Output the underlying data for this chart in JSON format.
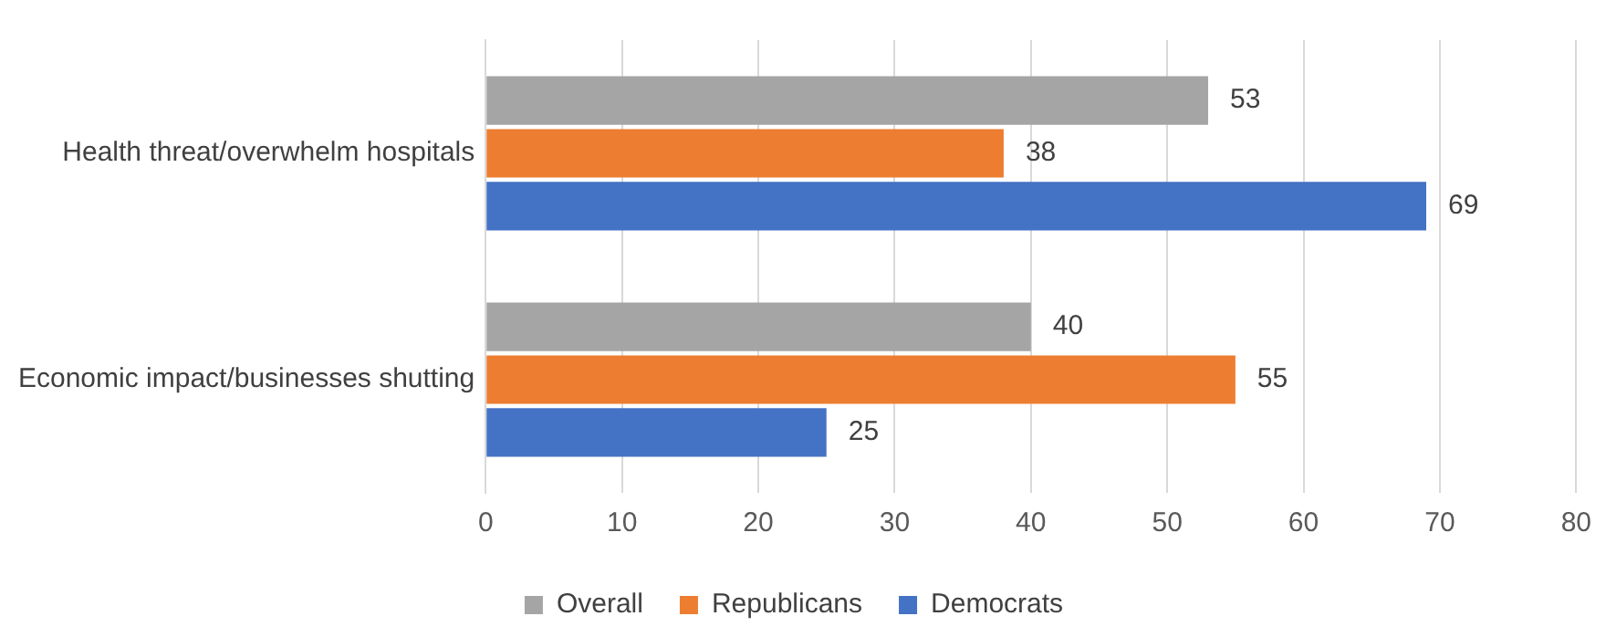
{
  "chart_data": {
    "type": "bar",
    "orientation": "horizontal",
    "categories": [
      "Health threat/overwhelm hospitals",
      "Economic impact/businesses shutting"
    ],
    "series": [
      {
        "name": "Overall",
        "color": "#a5a5a5",
        "values": [
          53,
          40
        ]
      },
      {
        "name": "Republicans",
        "color": "#ed7d31",
        "values": [
          38,
          55
        ]
      },
      {
        "name": "Democrats",
        "color": "#4472c4",
        "values": [
          69,
          25
        ]
      }
    ],
    "xlim": [
      0,
      80
    ],
    "xticks": [
      0,
      10,
      20,
      30,
      40,
      50,
      60,
      70,
      80
    ],
    "grid": "x",
    "legend": "bottom",
    "data_labels": true
  }
}
